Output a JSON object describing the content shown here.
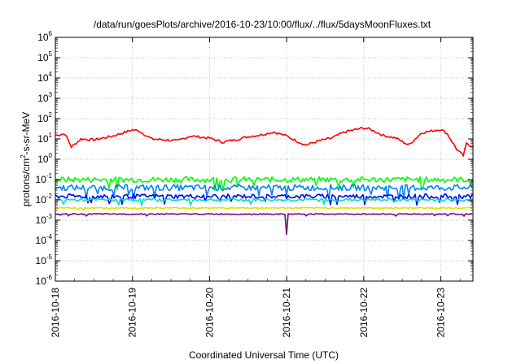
{
  "chart_data": {
    "type": "line",
    "title": "/data/run/goesPlots/archive/2016-10-23/10:00/flux/../flux/5daysMoonFluxes.txt",
    "xlabel": "Coordinated Universal Time (UTC)",
    "ylabel": "protons/cm²-s-sr-MeV",
    "ylabel_parts": [
      "protons/cm",
      "2",
      "-s-sr-MeV"
    ],
    "yscale": "log",
    "ylim_exp": [
      -6,
      6
    ],
    "y_ticks": [
      {
        "base": "10",
        "exp": "6"
      },
      {
        "base": "10",
        "exp": "5"
      },
      {
        "base": "10",
        "exp": "4"
      },
      {
        "base": "10",
        "exp": "3"
      },
      {
        "base": "10",
        "exp": "2"
      },
      {
        "base": "10",
        "exp": "1"
      },
      {
        "base": "10",
        "exp": "0"
      },
      {
        "base": "10",
        "exp": "-1"
      },
      {
        "base": "10",
        "exp": "-2"
      },
      {
        "base": "10",
        "exp": "-3"
      },
      {
        "base": "10",
        "exp": "-4"
      },
      {
        "base": "10",
        "exp": "-5"
      },
      {
        "base": "10",
        "exp": "-6"
      }
    ],
    "x_ticks": [
      "2016-10-18",
      "2016-10-19",
      "2016-10-20",
      "2016-10-21",
      "2016-10-22",
      "2016-10-23"
    ],
    "xlim": [
      "2016-10-18T00:00",
      "2016-10-23T10:00"
    ],
    "grid": true,
    "legend": false,
    "series": [
      {
        "color": "#ff0000",
        "pattern": "smooth",
        "points": [
          [
            "2016-10-18T00:00",
            15
          ],
          [
            "2016-10-18T03:00",
            18
          ],
          [
            "2016-10-18T05:00",
            4
          ],
          [
            "2016-10-18T08:00",
            10
          ],
          [
            "2016-10-18T12:00",
            9
          ],
          [
            "2016-10-18T18:00",
            14
          ],
          [
            "2016-10-19T00:00",
            28
          ],
          [
            "2016-10-19T02:00",
            25
          ],
          [
            "2016-10-19T06:00",
            10
          ],
          [
            "2016-10-19T10:00",
            9
          ],
          [
            "2016-10-19T14:00",
            8
          ],
          [
            "2016-10-19T18:00",
            14
          ],
          [
            "2016-10-20T00:00",
            11
          ],
          [
            "2016-10-20T04:00",
            7
          ],
          [
            "2016-10-20T08:00",
            9
          ],
          [
            "2016-10-20T12:00",
            13
          ],
          [
            "2016-10-20T16:00",
            16
          ],
          [
            "2016-10-20T20:00",
            22
          ],
          [
            "2016-10-21T00:00",
            14
          ],
          [
            "2016-10-21T03:00",
            8
          ],
          [
            "2016-10-21T06:00",
            5
          ],
          [
            "2016-10-21T10:00",
            8
          ],
          [
            "2016-10-21T14:00",
            11
          ],
          [
            "2016-10-21T18:00",
            22
          ],
          [
            "2016-10-22T00:00",
            35
          ],
          [
            "2016-10-22T02:00",
            30
          ],
          [
            "2016-10-22T06:00",
            15
          ],
          [
            "2016-10-22T10:00",
            11
          ],
          [
            "2016-10-22T14:00",
            5
          ],
          [
            "2016-10-22T18:00",
            20
          ],
          [
            "2016-10-23T00:00",
            30
          ],
          [
            "2016-10-23T02:00",
            18
          ],
          [
            "2016-10-23T05:00",
            3
          ],
          [
            "2016-10-23T07:00",
            1.5
          ],
          [
            "2016-10-23T08:00",
            6
          ],
          [
            "2016-10-23T10:00",
            4
          ]
        ]
      },
      {
        "color": "#00ff00",
        "pattern": "noisy",
        "level": 0.1,
        "spread": 0.28
      },
      {
        "color": "#0080ff",
        "pattern": "noisy",
        "level": 0.04,
        "spread": 0.3
      },
      {
        "color": "#0000ff",
        "pattern": "noisy",
        "level": 0.015,
        "spread": 0.22
      },
      {
        "color": "#00e0c0",
        "pattern": "noisy",
        "level": 0.01,
        "spread": 0.15
      },
      {
        "color": "#e0e000",
        "pattern": "noisy",
        "level": 0.004,
        "spread": 0.05
      },
      {
        "color": "#800080",
        "pattern": "noisy",
        "level": 0.002,
        "spread": 0.05,
        "dip": [
          "2016-10-21T00:00",
          0.0002
        ]
      }
    ]
  }
}
